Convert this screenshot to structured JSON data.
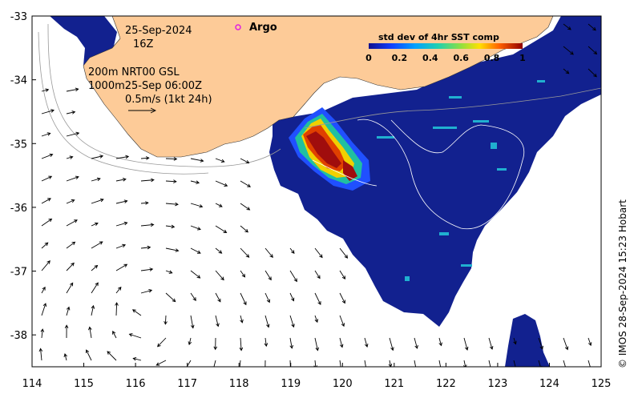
{
  "map": {
    "date": "25-Sep-2024",
    "time": "16Z",
    "depth_line_1": "200m  NRT00 GSL",
    "depth_line_2": "1000m25-Sep 06:00Z",
    "scale_label": "0.5m/s (1kt 24h)",
    "argo_label": "Argo",
    "colorbar_title": "std dev of 4hr SST comp",
    "colorbar_ticks": [
      "0",
      "0.2",
      "0.4",
      "0.6",
      "0.8",
      "1"
    ],
    "credit": "© IMOS 28-Sep-2024 15:23 Hobart",
    "x_ticks": [
      "114",
      "115",
      "116",
      "117",
      "118",
      "119",
      "120",
      "121",
      "122",
      "123",
      "124",
      "125"
    ],
    "y_ticks": [
      "-33",
      "-34",
      "-35",
      "-36",
      "-37",
      "-38"
    ],
    "lon_range": [
      114,
      125
    ],
    "lat_range": [
      -38.5,
      -33
    ],
    "colors": {
      "land": "#fdcb98",
      "ocean_low": "#12218f",
      "high": "#a80f0f",
      "argo": "#e020e0"
    }
  }
}
